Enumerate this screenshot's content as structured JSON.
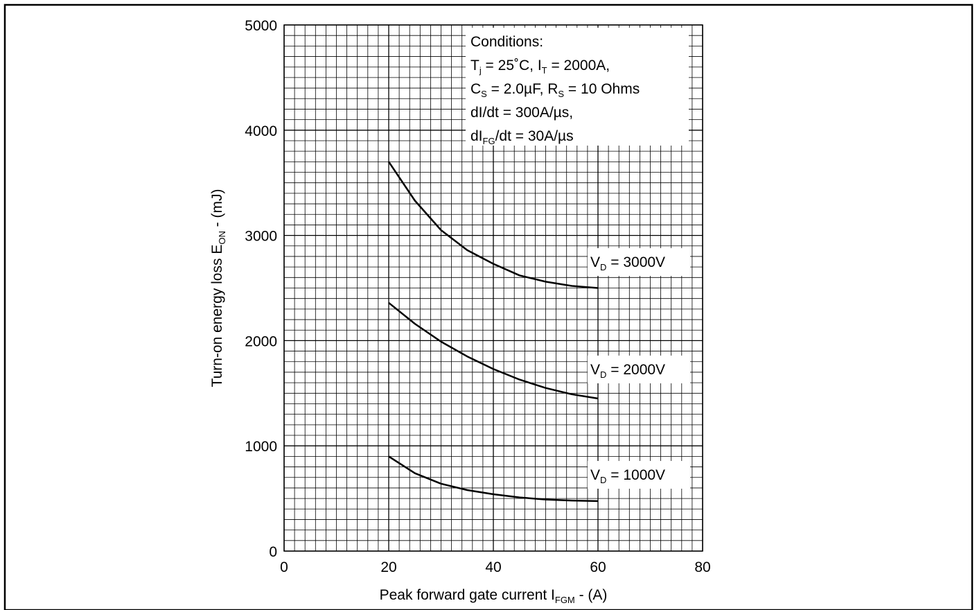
{
  "chart_data": {
    "type": "line",
    "title": "",
    "xlabel": {
      "text": "Peak forward gate current I",
      "sub": "FGM",
      "suffix": " - (A)"
    },
    "ylabel": {
      "text": "Turn-on energy loss E",
      "sub": "ON",
      "suffix": " - (mJ)"
    },
    "xlim": [
      0,
      80
    ],
    "ylim": [
      0,
      5000
    ],
    "xticks": [
      0,
      20,
      40,
      60,
      80
    ],
    "yticks": [
      0,
      1000,
      2000,
      3000,
      4000,
      5000
    ],
    "grid": true,
    "minor_x_step": 2,
    "minor_y_step": 100,
    "conditions": {
      "heading": "Conditions:",
      "lines": [
        [
          {
            "t": "T"
          },
          {
            "s": "j"
          },
          {
            "t": " = 25˚C, I"
          },
          {
            "s": "T"
          },
          {
            "t": " = 2000A,"
          }
        ],
        [
          {
            "t": "C"
          },
          {
            "s": "S"
          },
          {
            "t": " = 2.0µF, R"
          },
          {
            "s": "S"
          },
          {
            "t": " = 10 Ohms"
          }
        ],
        [
          {
            "t": "dI/dt = 300A/µs,"
          }
        ],
        [
          {
            "t": "dI"
          },
          {
            "s": "FG"
          },
          {
            "t": "/dt = 30A/µs"
          }
        ]
      ]
    },
    "series": [
      {
        "name": "V_D = 3000V",
        "label": {
          "main": "V",
          "sub": "D",
          "rest": " = 3000V"
        },
        "x": [
          20,
          25,
          30,
          35,
          40,
          45,
          50,
          55,
          60
        ],
        "y": [
          3700,
          3330,
          3050,
          2860,
          2730,
          2620,
          2560,
          2520,
          2500
        ]
      },
      {
        "name": "V_D = 2000V",
        "label": {
          "main": "V",
          "sub": "D",
          "rest": " = 2000V"
        },
        "x": [
          20,
          25,
          30,
          35,
          40,
          45,
          50,
          55,
          60
        ],
        "y": [
          2360,
          2160,
          1990,
          1850,
          1730,
          1630,
          1550,
          1490,
          1450
        ]
      },
      {
        "name": "V_D = 1000V",
        "label": {
          "main": "V",
          "sub": "D",
          "rest": " = 1000V"
        },
        "x": [
          20,
          25,
          30,
          35,
          40,
          45,
          50,
          55,
          60
        ],
        "y": [
          900,
          740,
          640,
          580,
          540,
          510,
          490,
          480,
          475
        ]
      }
    ]
  }
}
